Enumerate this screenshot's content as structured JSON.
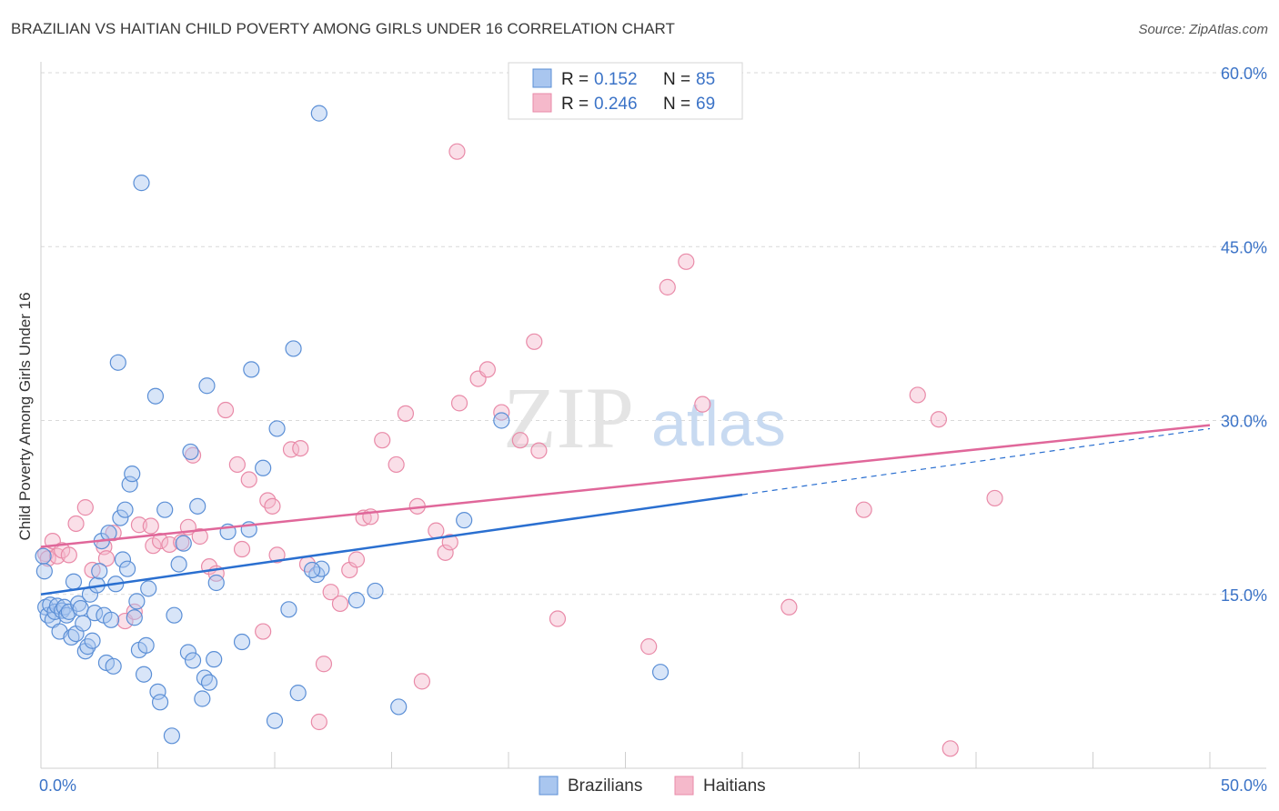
{
  "header": {
    "title": "BRAZILIAN VS HAITIAN CHILD POVERTY AMONG GIRLS UNDER 16 CORRELATION CHART",
    "source": "Source: ZipAtlas.com"
  },
  "watermark": {
    "zip": "ZIP",
    "atlas": "atlas"
  },
  "stats_box": {
    "rows": [
      {
        "r_label": "R =",
        "r_value": "0.152",
        "n_label": "N =",
        "n_value": "85"
      },
      {
        "r_label": "R =",
        "r_value": "0.246",
        "n_label": "N =",
        "n_value": "69"
      }
    ]
  },
  "colors": {
    "blue_fill": "#a9c6ef",
    "blue_stroke": "#5b8fd6",
    "blue_line": "#2a6fd0",
    "pink_fill": "#f5b9cb",
    "pink_stroke": "#e98aa8",
    "pink_line": "#e0679a",
    "tick_text": "#3b73c7",
    "grid": "#d9d9d9"
  },
  "chart_data": {
    "type": "scatter",
    "title": "BRAZILIAN VS HAITIAN CHILD POVERTY AMONG GIRLS UNDER 16 CORRELATION CHART",
    "xlabel": "",
    "ylabel": "Child Poverty Among Girls Under 16",
    "xlim": [
      0,
      50
    ],
    "ylim": [
      0,
      60
    ],
    "x_tick_labels": [
      {
        "value": 0,
        "label": "0.0%"
      },
      {
        "value": 50,
        "label": "50.0%"
      }
    ],
    "y_tick_labels": [
      {
        "value": 15,
        "label": "15.0%"
      },
      {
        "value": 30,
        "label": "30.0%"
      },
      {
        "value": 45,
        "label": "45.0%"
      },
      {
        "value": 60,
        "label": "60.0%"
      }
    ],
    "grid": true,
    "legend_position": "bottom-center",
    "series": [
      {
        "name": "Brazilians",
        "color": "#5b8fd6",
        "r": 0.152,
        "n": 85,
        "trend": {
          "x0": 0,
          "y0": 15.0,
          "x1": 30,
          "y1": 23.6,
          "dashed_to_x": 50,
          "dashed_to_y": 29.3
        },
        "points": [
          [
            0.2,
            13.9
          ],
          [
            0.3,
            13.2
          ],
          [
            0.4,
            14.1
          ],
          [
            0.5,
            12.8
          ],
          [
            0.6,
            13.5
          ],
          [
            0.7,
            14.0
          ],
          [
            0.8,
            11.8
          ],
          [
            0.9,
            13.6
          ],
          [
            1.0,
            13.9
          ],
          [
            1.1,
            13.2
          ],
          [
            1.2,
            13.5
          ],
          [
            1.3,
            11.3
          ],
          [
            1.4,
            16.1
          ],
          [
            1.5,
            11.6
          ],
          [
            1.6,
            14.2
          ],
          [
            1.7,
            13.8
          ],
          [
            1.8,
            12.5
          ],
          [
            1.9,
            10.1
          ],
          [
            2.0,
            10.5
          ],
          [
            2.1,
            15.0
          ],
          [
            2.2,
            11.0
          ],
          [
            2.3,
            13.4
          ],
          [
            2.4,
            15.8
          ],
          [
            2.5,
            17.0
          ],
          [
            2.6,
            19.6
          ],
          [
            2.7,
            13.2
          ],
          [
            2.8,
            9.1
          ],
          [
            2.9,
            20.3
          ],
          [
            3.0,
            12.8
          ],
          [
            3.1,
            8.8
          ],
          [
            3.2,
            15.9
          ],
          [
            3.3,
            35.0
          ],
          [
            3.4,
            21.6
          ],
          [
            3.5,
            18.0
          ],
          [
            3.6,
            22.3
          ],
          [
            3.7,
            17.2
          ],
          [
            3.8,
            24.5
          ],
          [
            3.9,
            25.4
          ],
          [
            4.0,
            13.0
          ],
          [
            4.1,
            14.4
          ],
          [
            4.2,
            10.2
          ],
          [
            4.3,
            50.5
          ],
          [
            4.4,
            8.1
          ],
          [
            4.5,
            10.6
          ],
          [
            4.6,
            15.5
          ],
          [
            4.9,
            32.1
          ],
          [
            5.0,
            6.6
          ],
          [
            5.1,
            5.7
          ],
          [
            5.3,
            22.3
          ],
          [
            5.6,
            2.8
          ],
          [
            5.7,
            13.2
          ],
          [
            5.9,
            17.6
          ],
          [
            6.1,
            19.4
          ],
          [
            6.3,
            10.0
          ],
          [
            6.4,
            27.3
          ],
          [
            6.5,
            9.3
          ],
          [
            6.7,
            22.6
          ],
          [
            6.9,
            6.0
          ],
          [
            7.0,
            7.8
          ],
          [
            7.1,
            33.0
          ],
          [
            7.2,
            7.4
          ],
          [
            7.4,
            9.4
          ],
          [
            7.5,
            16.0
          ],
          [
            8.0,
            20.4
          ],
          [
            8.6,
            10.9
          ],
          [
            8.9,
            20.6
          ],
          [
            9.0,
            34.4
          ],
          [
            9.5,
            25.9
          ],
          [
            10.0,
            4.1
          ],
          [
            10.1,
            29.3
          ],
          [
            10.6,
            13.7
          ],
          [
            10.8,
            36.2
          ],
          [
            11.0,
            6.5
          ],
          [
            11.9,
            56.5
          ],
          [
            11.8,
            16.7
          ],
          [
            12.0,
            17.2
          ],
          [
            11.6,
            17.1
          ],
          [
            13.5,
            14.5
          ],
          [
            14.3,
            15.3
          ],
          [
            15.3,
            5.3
          ],
          [
            18.1,
            21.4
          ],
          [
            19.7,
            30.0
          ],
          [
            26.5,
            8.3
          ],
          [
            0.1,
            18.3
          ],
          [
            0.15,
            17.0
          ]
        ]
      },
      {
        "name": "Haitians",
        "color": "#e98aa8",
        "r": 0.246,
        "n": 69,
        "trend": {
          "x0": 0,
          "y0": 19.1,
          "x1": 50,
          "y1": 29.6
        },
        "points": [
          [
            0.2,
            18.5
          ],
          [
            0.3,
            18.1
          ],
          [
            0.5,
            19.6
          ],
          [
            0.7,
            18.3
          ],
          [
            0.9,
            18.8
          ],
          [
            1.2,
            18.4
          ],
          [
            1.5,
            21.1
          ],
          [
            1.9,
            22.5
          ],
          [
            2.2,
            17.1
          ],
          [
            2.7,
            19.1
          ],
          [
            2.8,
            18.1
          ],
          [
            3.1,
            20.3
          ],
          [
            3.6,
            12.7
          ],
          [
            4.0,
            13.5
          ],
          [
            4.2,
            21.0
          ],
          [
            4.7,
            20.9
          ],
          [
            4.8,
            19.2
          ],
          [
            5.1,
            19.6
          ],
          [
            5.5,
            19.3
          ],
          [
            6.0,
            19.5
          ],
          [
            6.3,
            20.8
          ],
          [
            6.5,
            27.0
          ],
          [
            6.8,
            20.0
          ],
          [
            7.2,
            17.4
          ],
          [
            7.5,
            16.8
          ],
          [
            7.9,
            30.9
          ],
          [
            8.4,
            26.2
          ],
          [
            8.6,
            18.9
          ],
          [
            8.9,
            24.9
          ],
          [
            9.5,
            11.8
          ],
          [
            9.7,
            23.1
          ],
          [
            9.9,
            22.6
          ],
          [
            10.1,
            18.4
          ],
          [
            10.7,
            27.5
          ],
          [
            11.1,
            27.6
          ],
          [
            11.4,
            17.6
          ],
          [
            11.9,
            4.0
          ],
          [
            12.1,
            9.0
          ],
          [
            12.4,
            15.2
          ],
          [
            12.8,
            14.2
          ],
          [
            13.2,
            17.1
          ],
          [
            13.5,
            18.0
          ],
          [
            13.8,
            21.6
          ],
          [
            14.1,
            21.7
          ],
          [
            14.6,
            28.3
          ],
          [
            15.2,
            26.2
          ],
          [
            15.6,
            30.6
          ],
          [
            16.1,
            22.6
          ],
          [
            16.3,
            7.5
          ],
          [
            16.9,
            20.5
          ],
          [
            17.3,
            18.6
          ],
          [
            17.5,
            19.5
          ],
          [
            17.8,
            53.2
          ],
          [
            17.9,
            31.5
          ],
          [
            18.7,
            33.6
          ],
          [
            19.1,
            34.4
          ],
          [
            19.7,
            30.7
          ],
          [
            20.5,
            28.3
          ],
          [
            21.1,
            36.8
          ],
          [
            21.3,
            27.4
          ],
          [
            22.1,
            12.9
          ],
          [
            26.0,
            10.5
          ],
          [
            26.8,
            41.5
          ],
          [
            27.6,
            43.7
          ],
          [
            28.3,
            31.4
          ],
          [
            32.0,
            13.9
          ],
          [
            35.2,
            22.3
          ],
          [
            37.5,
            32.2
          ],
          [
            38.4,
            30.1
          ]
        ]
      }
    ],
    "extra_points_haitians": [
      [
        38.9,
        1.7
      ],
      [
        40.8,
        23.3
      ]
    ]
  },
  "legend": {
    "items": [
      {
        "label": "Brazilians"
      },
      {
        "label": "Haitians"
      }
    ]
  }
}
